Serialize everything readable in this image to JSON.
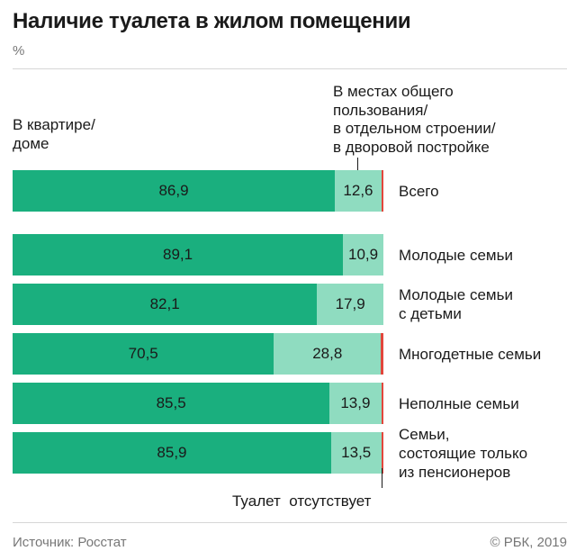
{
  "title": "Наличие туалета в жилом помещении",
  "unit": "%",
  "legend": {
    "in_home": "В квартире/\nдоме",
    "shared": "В местах общего\nпользования/\nв отдельном строении/\nв дворовой постройке",
    "absent": "Туалет  отсутствует"
  },
  "footer": {
    "source": "Источник: Росстат",
    "copyright": "© РБК, 2019"
  },
  "colors": {
    "in_home": "#1aaf7e",
    "shared": "#8fdcc0",
    "absent": "#e2463c"
  },
  "chart_data": {
    "type": "bar",
    "orientation": "horizontal",
    "stacked": true,
    "categories": [
      "Всего",
      "Молодые семьи",
      "Молодые семьи\nс детьми",
      "Многодетные семьи",
      "Неполные семьи",
      "Семьи,\nсостоящие только\nиз пенсионеров"
    ],
    "series": [
      {
        "name": "В квартире/ доме",
        "values": [
          86.9,
          89.1,
          82.1,
          70.5,
          85.5,
          85.9
        ],
        "labels": [
          "86,9",
          "89,1",
          "82,1",
          "70,5",
          "85,5",
          "85,9"
        ]
      },
      {
        "name": "В местах общего пользования/ в отдельном строении/ в дворовой постройке",
        "values": [
          12.6,
          10.9,
          17.9,
          28.8,
          13.9,
          13.5
        ],
        "labels": [
          "12,6",
          "10,9",
          "17,9",
          "28,8",
          "13,9",
          "13,5"
        ]
      },
      {
        "name": "Туалет отсутствует",
        "values": [
          0.5,
          0,
          0,
          0.7,
          0.6,
          0.6
        ],
        "labels": [
          "",
          "",
          "",
          "",
          "",
          ""
        ]
      }
    ],
    "xlim": [
      0,
      100
    ]
  }
}
